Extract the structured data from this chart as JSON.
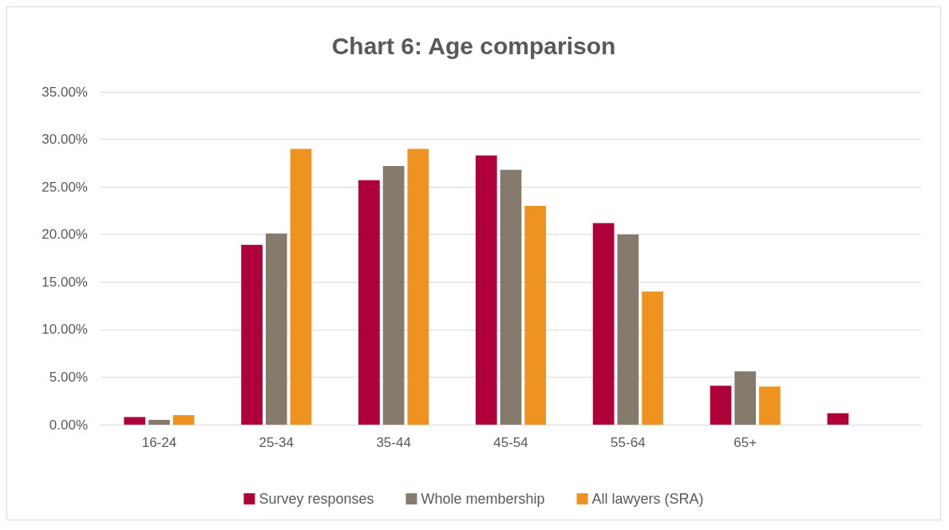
{
  "chart_data": {
    "type": "bar",
    "title": "Chart 6: Age comparison",
    "categories": [
      "16-24",
      "25-34",
      "35-44",
      "45-54",
      "55-64",
      "65+",
      null
    ],
    "series": [
      {
        "name": "Survey responses",
        "color": "#b0003a",
        "values": [
          0.8,
          18.9,
          25.7,
          28.3,
          21.2,
          4.1,
          1.2
        ]
      },
      {
        "name": "Whole membership",
        "color": "#857b6c",
        "values": [
          0.5,
          20.1,
          27.2,
          26.8,
          20.0,
          5.6,
          null
        ]
      },
      {
        "name": "All lawyers (SRA)",
        "color": "#ee9220",
        "values": [
          1.0,
          29.0,
          29.0,
          23.0,
          14.0,
          4.0,
          null
        ]
      }
    ],
    "ylim": [
      0,
      35
    ],
    "yticks": [
      {
        "value": 0,
        "label": "0.00%"
      },
      {
        "value": 5,
        "label": "5.00%"
      },
      {
        "value": 10,
        "label": "10.00%"
      },
      {
        "value": 15,
        "label": "15.00%"
      },
      {
        "value": 20,
        "label": "20.00%"
      },
      {
        "value": 25,
        "label": "25.00%"
      },
      {
        "value": 30,
        "label": "30.00%"
      },
      {
        "value": 35,
        "label": "35.00%"
      }
    ],
    "grid": "y",
    "legend": "bottom"
  }
}
